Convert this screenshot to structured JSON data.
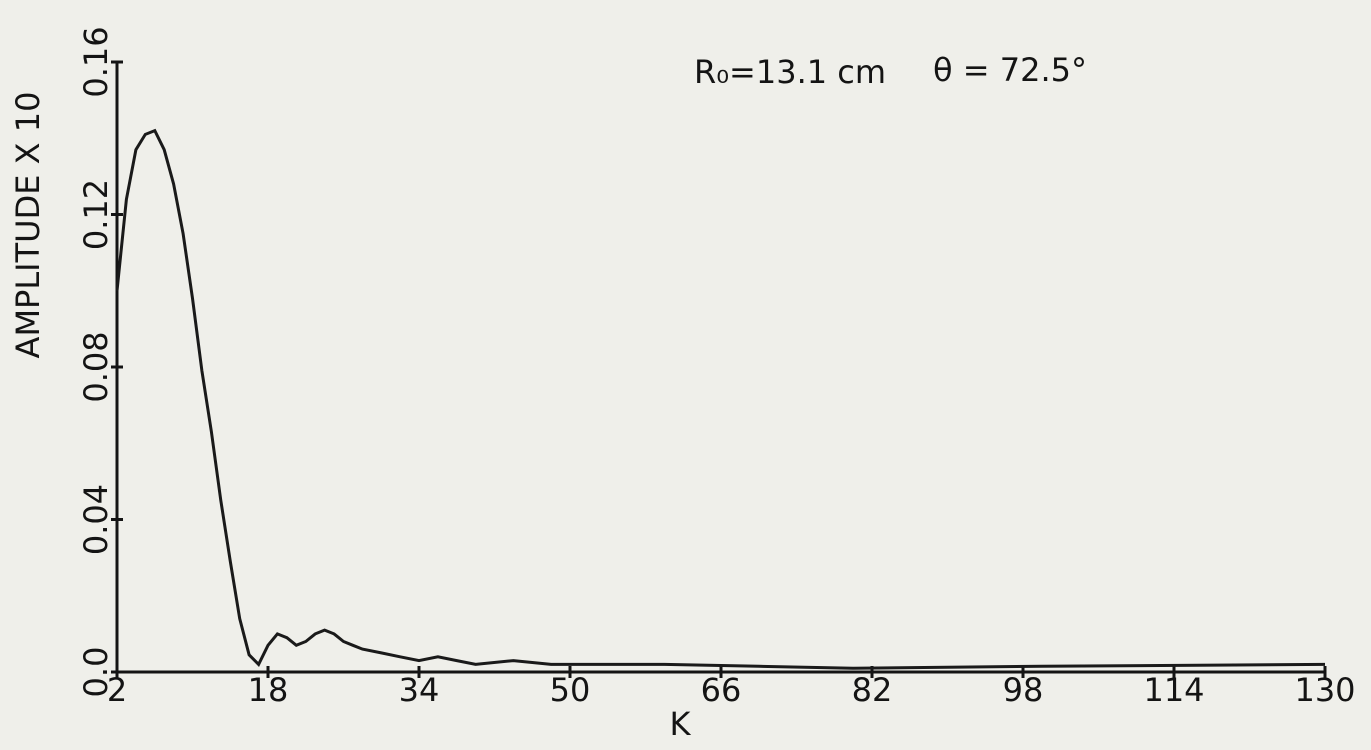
{
  "chart_data": {
    "type": "line",
    "annotations": [
      "R₀=13.1 cm",
      "θ = 72.5°"
    ],
    "xlabel": "K",
    "ylabel": "AMPLITUDE X 10",
    "x": [
      2,
      3,
      4,
      5,
      6,
      7,
      8,
      9,
      10,
      11,
      12,
      13,
      14,
      15,
      16,
      17,
      18,
      19,
      20,
      21,
      22,
      23,
      24,
      25,
      26,
      27,
      28,
      30,
      32,
      34,
      36,
      38,
      40,
      44,
      48,
      52,
      60,
      70,
      80,
      100,
      130
    ],
    "values": [
      0.1,
      0.124,
      0.137,
      0.141,
      0.142,
      0.137,
      0.128,
      0.115,
      0.098,
      0.079,
      0.063,
      0.045,
      0.029,
      0.014,
      0.0045,
      0.002,
      0.007,
      0.01,
      0.009,
      0.007,
      0.008,
      0.01,
      0.011,
      0.01,
      0.008,
      0.007,
      0.006,
      0.005,
      0.004,
      0.003,
      0.004,
      0.003,
      0.002,
      0.003,
      0.002,
      0.002,
      0.002,
      0.0015,
      0.001,
      0.0015,
      0.002
    ],
    "color": "#1a1a1a",
    "xlim": [
      2,
      130
    ],
    "xticks": [
      2,
      18,
      34,
      50,
      66,
      82,
      98,
      114,
      130
    ],
    "ylim": [
      0,
      0.16
    ],
    "yticks": [
      {
        "value": 0,
        "label": "0.0"
      },
      0.04,
      0.08,
      0.12,
      0.16
    ]
  }
}
